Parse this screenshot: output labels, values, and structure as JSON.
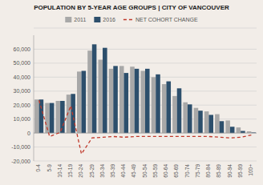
{
  "chart_data": {
    "type": "bar",
    "title": "POPULATION BY 5-YEAR AGE GROUPS | CITY OF VANCOUVER",
    "categories": [
      "0-4",
      "5-9",
      "10-14",
      "15-19",
      "20-24",
      "25-29",
      "30-34",
      "35-39",
      "40-44",
      "45-49",
      "50-54",
      "55-59",
      "60-64",
      "65-69",
      "70-74",
      "75-79",
      "80-84",
      "85-89",
      "90-94",
      "95-99",
      "100+"
    ],
    "series": [
      {
        "name": "2011",
        "color": "#a8a8a8",
        "values": [
          24000,
          21500,
          23000,
          27500,
          44000,
          59000,
          52500,
          46000,
          48000,
          47500,
          44500,
          40000,
          35000,
          26500,
          22000,
          18000,
          15500,
          13500,
          9000,
          4000,
          1200
        ]
      },
      {
        "name": "2016",
        "color": "#2d4f6c",
        "values": [
          24000,
          21500,
          23000,
          28000,
          44500,
          63500,
          61000,
          48000,
          43000,
          46000,
          46000,
          42000,
          37000,
          32000,
          20500,
          16000,
          13000,
          8500,
          4500,
          1500,
          400
        ]
      },
      {
        "name": "NET COHORT CHANGE",
        "type": "line",
        "color": "#c0392b",
        "line_style": "dashed",
        "values": [
          23500,
          -2500,
          500,
          19500,
          -15000,
          -3500,
          -3000,
          -2500,
          -3000,
          -2500,
          -2500,
          -2500,
          -2500,
          -2500,
          -2500,
          -2500,
          -2500,
          -3000,
          -3500,
          -3000,
          -1500
        ]
      }
    ],
    "ylim": [
      -20000,
      70000
    ],
    "yticks": [
      {
        "value": -20000,
        "label": "-20,000"
      },
      {
        "value": -10000,
        "label": "-10,000"
      },
      0,
      {
        "value": 10000,
        "label": "10,000"
      },
      {
        "value": 20000,
        "label": "20,000"
      },
      {
        "value": 30000,
        "label": "30,000"
      },
      {
        "value": 40000,
        "label": "40,000"
      },
      {
        "value": 50000,
        "label": "50,000"
      },
      {
        "value": 60000,
        "label": "60,000"
      }
    ],
    "grid": true,
    "legend": "top"
  }
}
